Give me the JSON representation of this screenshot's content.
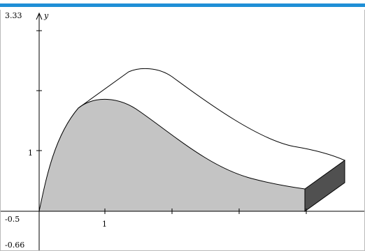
{
  "graph": {
    "y_max_label": "3.33",
    "y_axis_label": "y",
    "y_tick_label": "1",
    "x_min_label": "-0.5",
    "x_tick_label": "1",
    "y_min_label": "-0.66"
  },
  "colors": {
    "top_bar": "#1f8fd6",
    "region_fill": "#c4c4c4",
    "side_face": "#505050",
    "curve": "#000000"
  }
}
